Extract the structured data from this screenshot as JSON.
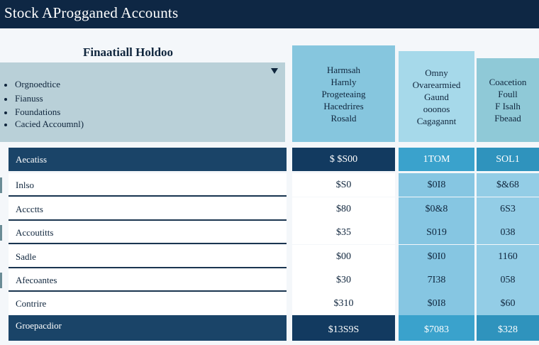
{
  "app": {
    "title": "Stock AProgganed Accounts"
  },
  "panel": {
    "title": "Finaatiall Holdoo",
    "items": [
      "Orgnoedtice",
      "Fianuss",
      "Foundations",
      "Cacied Accoumnl)"
    ]
  },
  "columns": [
    {
      "lines": [
        "Harmsah",
        "Harnly",
        "Progeteaing",
        "Hacedrires",
        "Rosald"
      ]
    },
    {
      "lines": [
        "Omny",
        "Ovarearmied",
        "Gaund",
        "ooonos",
        "Cagagannt"
      ]
    },
    {
      "lines": [
        "Coacetion",
        "Foull",
        "F Isalh",
        "Fbeaad"
      ]
    }
  ],
  "rows": [
    {
      "label": "Aecatiss",
      "values": [
        "$ $S00",
        "1ΤΟΜ",
        "SOL1"
      ],
      "style": "dark"
    },
    {
      "label": "Inlso",
      "values": [
        "$S0",
        "$0I8",
        "$&68"
      ],
      "style": "light"
    },
    {
      "label": "Accctts",
      "values": [
        "$80",
        "$0&8",
        "6S3"
      ],
      "style": "light"
    },
    {
      "label": "Accoutitts",
      "values": [
        "$35",
        "S019",
        "038"
      ],
      "style": "light"
    },
    {
      "label": "Sadle",
      "values": [
        "$00",
        "$0I0",
        "1160"
      ],
      "style": "light"
    },
    {
      "label": "Afecoantes",
      "values": [
        "$30",
        "7I38",
        "058"
      ],
      "style": "light"
    },
    {
      "label": "Contrire",
      "values": [
        "$310",
        "$0I8",
        "$60"
      ],
      "style": "light"
    },
    {
      "label": "Groepacdior",
      "values": [
        "$13S9S",
        "$7083",
        "$328"
      ],
      "style": "dark"
    }
  ],
  "colors": {
    "topbar": "#0e2744",
    "panel": "#b9d0d8",
    "dark_row": "#1a4468",
    "col1": "#86c6de",
    "col2": "#a6d9ea",
    "col3": "#8fc9d7"
  }
}
